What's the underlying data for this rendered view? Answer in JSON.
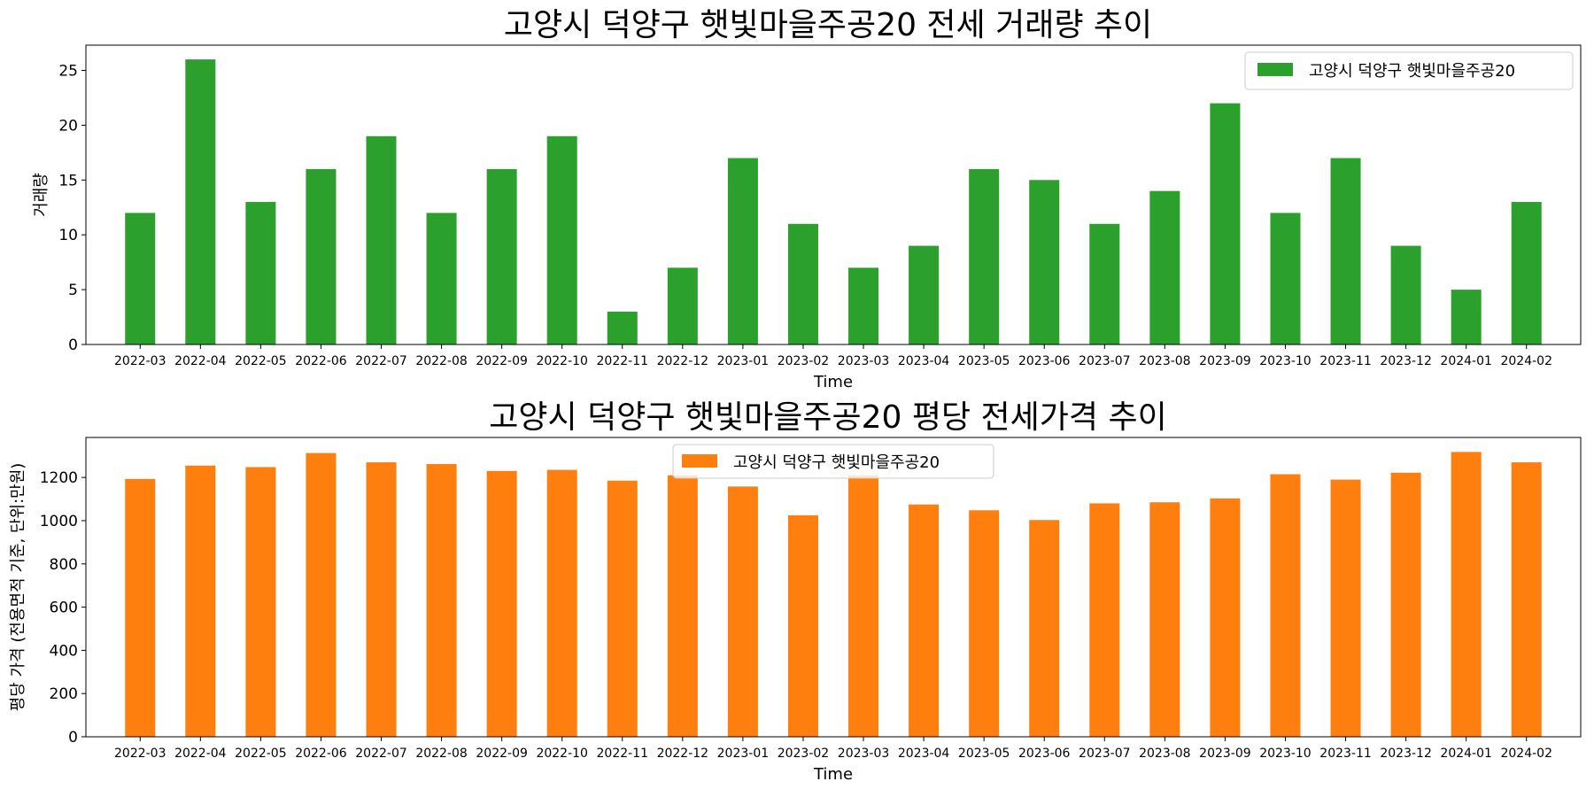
{
  "chart_data": [
    {
      "type": "bar",
      "title": "고양시 덕양구 햇빛마을주공20 전세 거래량 추이",
      "xlabel": "Time",
      "ylabel": "거래량",
      "categories": [
        "2022-03",
        "2022-04",
        "2022-05",
        "2022-06",
        "2022-07",
        "2022-08",
        "2022-09",
        "2022-10",
        "2022-11",
        "2022-12",
        "2023-01",
        "2023-02",
        "2023-03",
        "2023-04",
        "2023-05",
        "2023-06",
        "2023-07",
        "2023-08",
        "2023-09",
        "2023-10",
        "2023-11",
        "2023-12",
        "2024-01",
        "2024-02"
      ],
      "series": [
        {
          "name": "고양시 덕양구 햇빛마을주공20",
          "color": "#2ca02c",
          "values": [
            12,
            26,
            13,
            16,
            19,
            12,
            16,
            19,
            3,
            7,
            17,
            11,
            7,
            9,
            16,
            15,
            11,
            14,
            22,
            12,
            17,
            9,
            5,
            13
          ]
        }
      ],
      "ylim": [
        0,
        27.3
      ],
      "yticks": [
        0,
        5,
        10,
        15,
        20,
        25
      ],
      "legend_position": "upper right",
      "grid": false
    },
    {
      "type": "bar",
      "title": "고양시 덕양구 햇빛마을주공20 평당 전세가격 추이",
      "xlabel": "Time",
      "ylabel": "평당 가격 (전용면적 기준, 단위:만원)",
      "categories": [
        "2022-03",
        "2022-04",
        "2022-05",
        "2022-06",
        "2022-07",
        "2022-08",
        "2022-09",
        "2022-10",
        "2022-11",
        "2022-12",
        "2023-01",
        "2023-02",
        "2023-03",
        "2023-04",
        "2023-05",
        "2023-06",
        "2023-07",
        "2023-08",
        "2023-09",
        "2023-10",
        "2023-11",
        "2023-12",
        "2024-01",
        "2024-02"
      ],
      "series": [
        {
          "name": "고양시 덕양구 햇빛마을주공20",
          "color": "#ff7f0e",
          "values": [
            1193,
            1255,
            1248,
            1313,
            1270,
            1262,
            1230,
            1235,
            1185,
            1210,
            1158,
            1025,
            1210,
            1075,
            1048,
            1003,
            1080,
            1085,
            1103,
            1215,
            1190,
            1222,
            1318,
            1270
          ]
        }
      ],
      "ylim": [
        0,
        1385
      ],
      "yticks": [
        0,
        200,
        400,
        600,
        800,
        1000,
        1200
      ],
      "legend_position": "upper center",
      "grid": false
    }
  ]
}
